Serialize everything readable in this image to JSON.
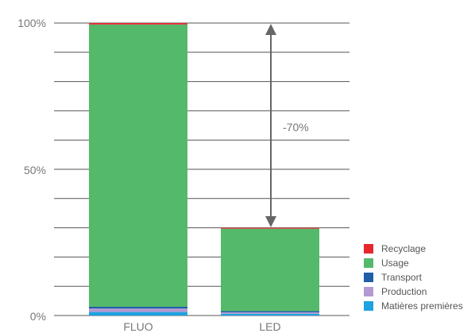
{
  "chart_data": {
    "type": "bar",
    "stacked": true,
    "categories": [
      "FLUO",
      "LED"
    ],
    "series": [
      {
        "name": "Matières premières",
        "color": "#1ea3e0",
        "values": [
          1.2,
          0.6
        ]
      },
      {
        "name": "Production",
        "color": "#b39ad3",
        "values": [
          1.2,
          0.5
        ]
      },
      {
        "name": "Transport",
        "color": "#1f5fa8",
        "values": [
          0.6,
          0.4
        ]
      },
      {
        "name": "Usage",
        "color": "#55b96b",
        "values": [
          96.5,
          28.2
        ]
      },
      {
        "name": "Recyclage",
        "color": "#e8272d",
        "values": [
          0.5,
          0.3
        ]
      }
    ],
    "yticks": [
      "0%",
      "50%",
      "100%"
    ],
    "ylim": [
      0,
      100
    ],
    "grid_lines_every": 10,
    "annotation": {
      "label": "-70%",
      "from": 100,
      "to": 30,
      "between": "LED"
    },
    "legend_position": "right-bottom",
    "title": "",
    "xlabel": "",
    "ylabel": ""
  }
}
